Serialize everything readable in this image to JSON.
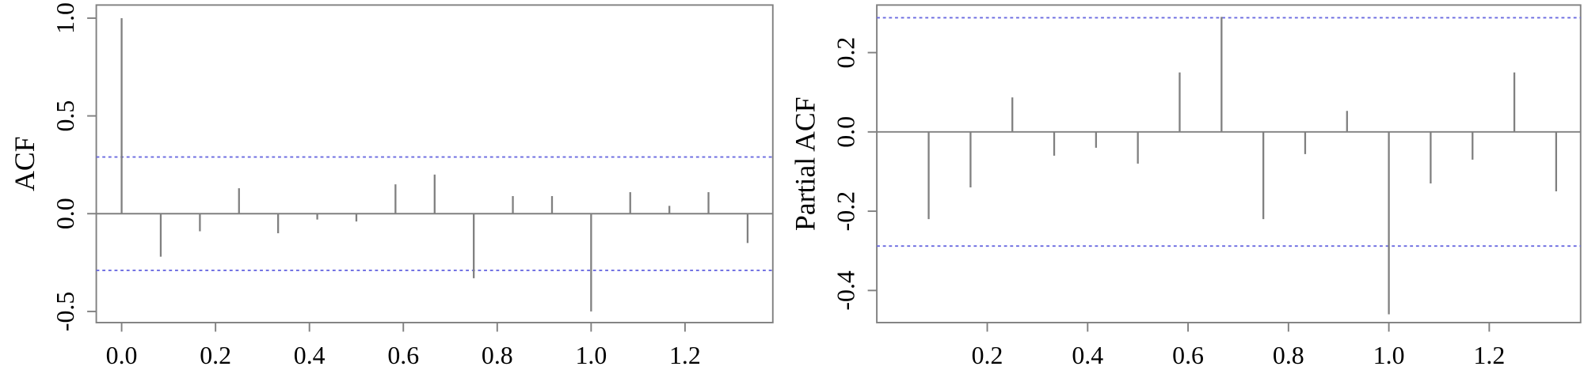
{
  "chart_data": [
    {
      "type": "stem",
      "y_label": "ACF",
      "color": "#808080",
      "hline_color": "#6a6ae0",
      "x": [
        0,
        0.0833,
        0.1667,
        0.25,
        0.3333,
        0.4167,
        0.5,
        0.5833,
        0.6667,
        0.75,
        0.8333,
        0.9167,
        1.0,
        1.0833,
        1.1667,
        1.25,
        1.3333
      ],
      "values": [
        1.0,
        -0.22,
        -0.09,
        0.13,
        -0.1,
        -0.03,
        -0.04,
        0.15,
        0.2,
        -0.33,
        0.09,
        0.09,
        -0.5,
        0.11,
        0.04,
        0.11,
        -0.15
      ],
      "hlines": [
        0.29,
        -0.29
      ],
      "xlim": [
        -0.054,
        1.387
      ],
      "ylim": [
        -0.557,
        1.067
      ],
      "xticks": [
        {
          "value": 0,
          "label": "0.0"
        },
        0.2,
        0.4,
        0.6,
        0.8,
        {
          "value": 1,
          "label": "1.0"
        },
        1.2
      ],
      "yticks": [
        -0.5,
        {
          "value": 0,
          "label": "0.0"
        },
        0.5,
        {
          "value": 1,
          "label": "1.0"
        }
      ]
    },
    {
      "type": "stem",
      "y_label": "Partial ACF",
      "color": "#808080",
      "hline_color": "#6a6ae0",
      "x": [
        0.0833,
        0.1667,
        0.25,
        0.3333,
        0.4167,
        0.5,
        0.5833,
        0.6667,
        0.75,
        0.8333,
        0.9167,
        1.0,
        1.0833,
        1.1667,
        1.25,
        1.3333
      ],
      "values": [
        -0.22,
        -0.14,
        0.087,
        -0.06,
        -0.04,
        -0.08,
        0.15,
        0.29,
        -0.22,
        -0.056,
        0.053,
        -0.46,
        -0.13,
        -0.07,
        0.15,
        -0.15
      ],
      "hlines": [
        0.288,
        -0.288
      ],
      "xlim": [
        -0.02,
        1.382
      ],
      "ylim": [
        -0.481,
        0.32
      ],
      "xticks": [
        0.2,
        0.4,
        0.6,
        0.8,
        {
          "value": 1,
          "label": "1.0"
        },
        1.2
      ],
      "yticks": [
        -0.4,
        -0.2,
        {
          "value": 0,
          "label": "0.0"
        },
        0.2
      ]
    }
  ]
}
